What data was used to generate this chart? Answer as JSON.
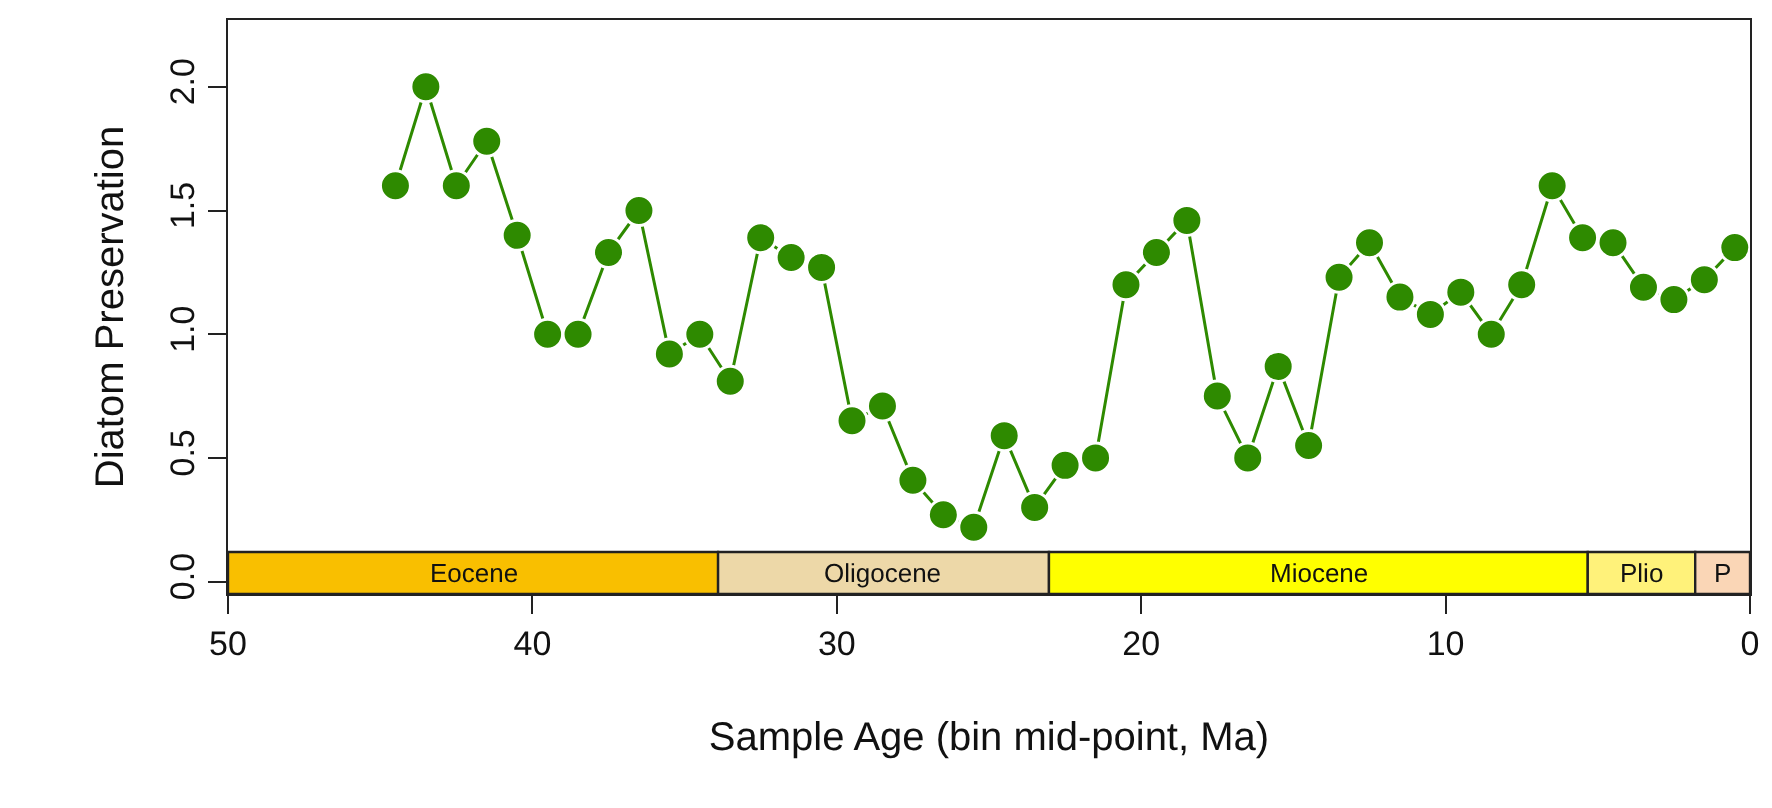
{
  "chart_data": {
    "type": "line",
    "xlabel": "Sample Age (bin mid-point, Ma)",
    "ylabel": "Diatom Preservation",
    "x": [
      44.5,
      43.5,
      42.5,
      41.5,
      40.5,
      39.5,
      38.5,
      37.5,
      36.5,
      35.5,
      34.5,
      33.5,
      32.5,
      31.5,
      30.5,
      29.5,
      28.5,
      27.5,
      26.5,
      25.5,
      24.5,
      23.5,
      22.5,
      21.5,
      20.5,
      19.5,
      18.5,
      17.5,
      16.5,
      15.5,
      14.5,
      13.5,
      12.5,
      11.5,
      10.5,
      9.5,
      8.5,
      7.5,
      6.5,
      5.5,
      4.5,
      3.5,
      2.5,
      1.5,
      0.5
    ],
    "series": [
      {
        "color": "#2e8a00",
        "values": [
          1.6,
          2.0,
          1.6,
          1.78,
          1.4,
          1.0,
          1.0,
          1.33,
          1.5,
          0.92,
          1.0,
          0.81,
          1.39,
          1.31,
          1.27,
          0.65,
          0.71,
          0.41,
          0.27,
          0.22,
          0.59,
          0.3,
          0.47,
          0.5,
          1.2,
          1.33,
          1.46,
          0.75,
          0.5,
          0.87,
          0.55,
          1.23,
          1.37,
          1.15,
          1.08,
          1.17,
          1.0,
          1.2,
          1.6,
          1.39,
          1.37,
          1.19,
          1.14,
          1.22,
          1.35
        ]
      }
    ],
    "xlim": [
      50,
      0
    ],
    "ylim": [
      -0.05,
      2.27
    ],
    "xticks": [
      50,
      40,
      30,
      20,
      10,
      0
    ],
    "yticks": [
      {
        "value": 0,
        "label": "0.0"
      },
      {
        "value": 0.5,
        "label": "0.5"
      },
      {
        "value": 1,
        "label": "1.0"
      },
      {
        "value": 1.5,
        "label": "1.5"
      },
      {
        "value": 2,
        "label": "2.0"
      }
    ],
    "bands": [
      {
        "axis": "x",
        "from": 50,
        "to": 33.9,
        "label": "Eocene",
        "color": "#f9bf00"
      },
      {
        "axis": "x",
        "from": 33.9,
        "to": 23.03,
        "label": "Oligocene",
        "color": "#edd8a8"
      },
      {
        "axis": "x",
        "from": 23.03,
        "to": 5.33,
        "label": "Miocene",
        "color": "#ffff00"
      },
      {
        "axis": "x",
        "from": 5.33,
        "to": 1.8,
        "label": "Plio",
        "color": "#fff27a"
      },
      {
        "axis": "x",
        "from": 1.8,
        "to": 0,
        "label": "P",
        "color": "#fad6b6"
      }
    ],
    "marker": "circle",
    "line_style": "solid",
    "grid": false,
    "legend": false
  }
}
